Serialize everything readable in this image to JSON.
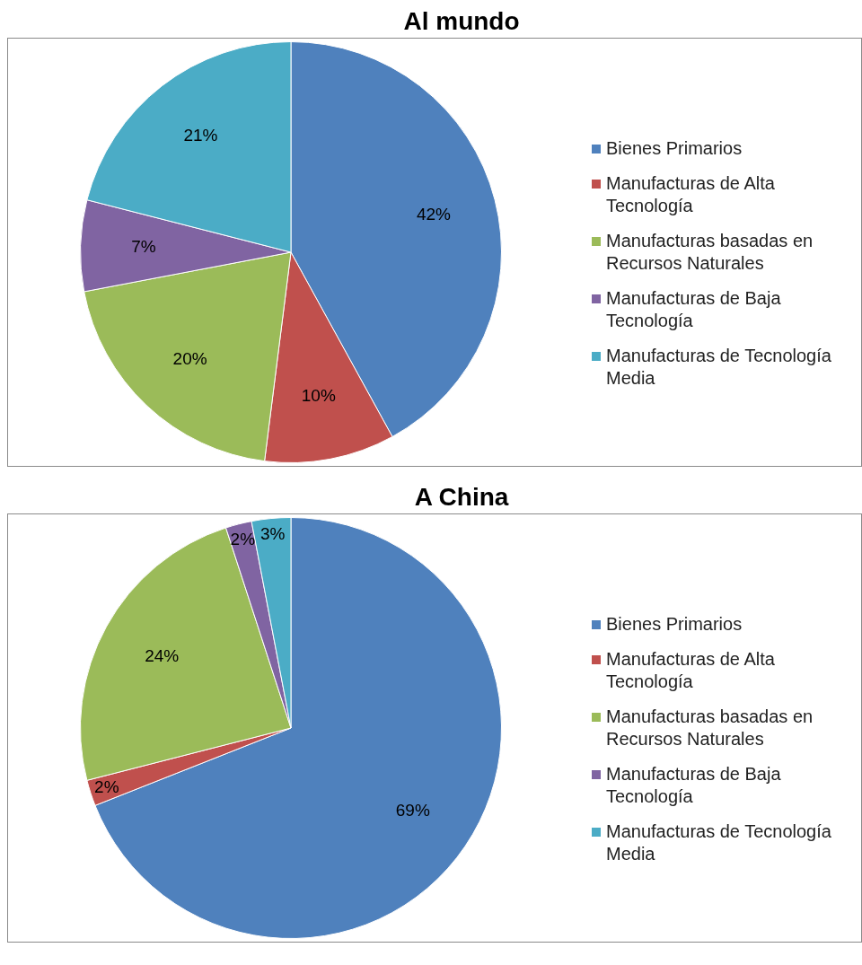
{
  "chart_data": [
    {
      "type": "pie",
      "title": "Al mundo",
      "categories": [
        "Bienes Primarios",
        "Manufacturas de Alta Tecnología",
        "Manufacturas basadas en Recursos Naturales",
        "Manufacturas de Baja Tecnología",
        "Manufacturas de Tecnología Media"
      ],
      "values": [
        42,
        10,
        20,
        7,
        21
      ],
      "value_labels": [
        "42%",
        "10%",
        "20%",
        "7%",
        "21%"
      ],
      "colors": [
        "#4f81bd",
        "#c0504d",
        "#9bbb59",
        "#8064a2",
        "#4bacc6"
      ],
      "legend": "right"
    },
    {
      "type": "pie",
      "title": "A China",
      "categories": [
        "Bienes Primarios",
        "Manufacturas de Alta Tecnología",
        "Manufacturas basadas en Recursos Naturales",
        "Manufacturas de Baja Tecnología",
        "Manufacturas de Tecnología Media"
      ],
      "values": [
        69,
        2,
        24,
        2,
        3
      ],
      "value_labels": [
        "69%",
        "2%",
        "24%",
        "2%",
        "3%"
      ],
      "colors": [
        "#4f81bd",
        "#c0504d",
        "#9bbb59",
        "#8064a2",
        "#4bacc6"
      ],
      "legend": "right"
    }
  ]
}
